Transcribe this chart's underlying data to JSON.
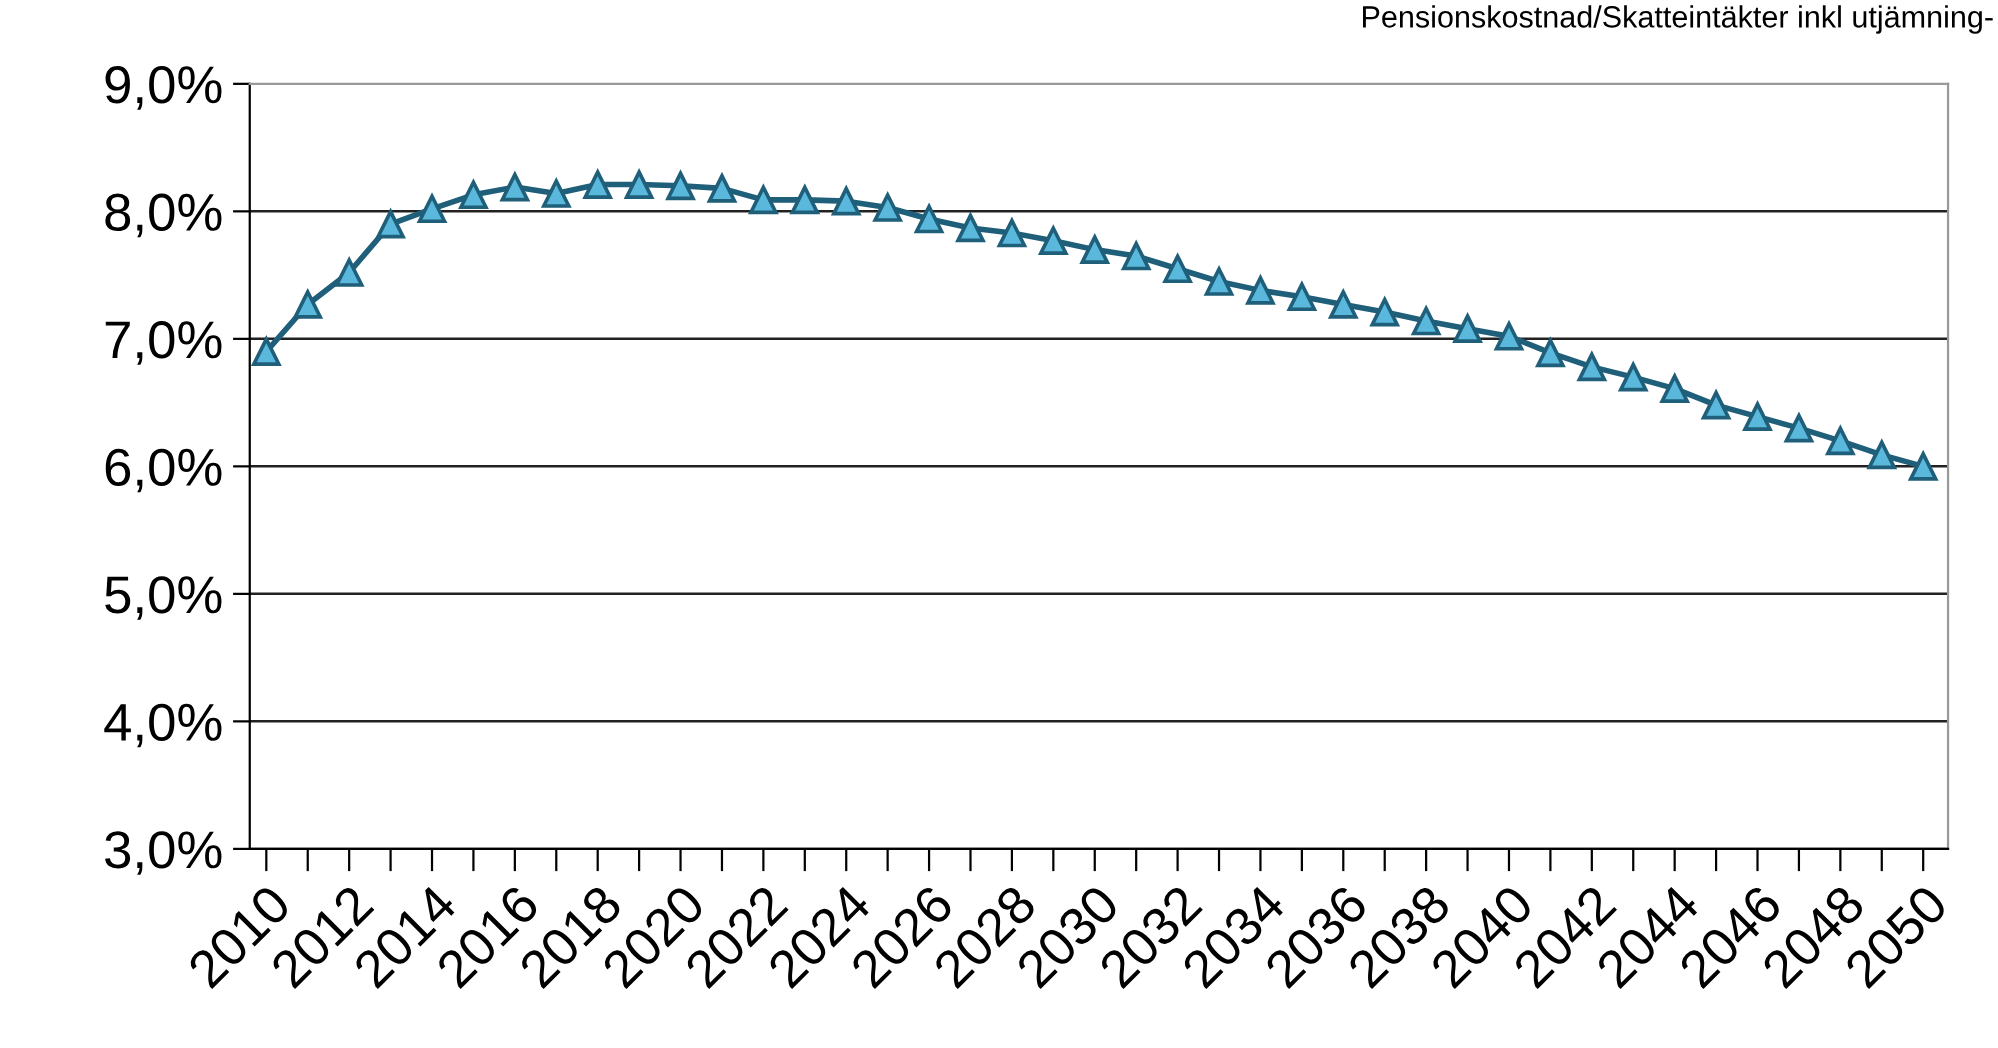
{
  "chart_data": {
    "type": "line",
    "title": "Pensionskostnad/Skatteintäkter inkl utjämning-",
    "categories": [
      "2010",
      null,
      "2012",
      null,
      "2014",
      null,
      "2016",
      null,
      "2018",
      null,
      "2020",
      null,
      "2022",
      null,
      "2024",
      null,
      "2026",
      null,
      "2028",
      null,
      "2030",
      null,
      "2032",
      null,
      "2034",
      null,
      "2036",
      null,
      "2038",
      null,
      "2040",
      null,
      "2042",
      null,
      "2044",
      null,
      "2046",
      null,
      "2048",
      null,
      "2050"
    ],
    "series": [
      {
        "color": "#1f5f7a",
        "values": [
          6.9,
          7.27,
          7.52,
          7.9,
          8.02,
          8.13,
          8.19,
          8.14,
          8.21,
          8.21,
          8.2,
          8.18,
          8.09,
          8.09,
          8.08,
          8.03,
          7.94,
          7.87,
          7.83,
          7.77,
          7.7,
          7.65,
          7.55,
          7.45,
          7.38,
          7.33,
          7.27,
          7.21,
          7.14,
          7.08,
          7.02,
          6.89,
          6.78,
          6.7,
          6.61,
          6.48,
          6.39,
          6.3,
          6.2,
          6.09,
          6.0
        ]
      }
    ],
    "ylim": [
      3,
      9
    ],
    "yticks": [
      {
        "value": 3,
        "label": "3,0%"
      },
      {
        "value": 4,
        "label": "4,0%"
      },
      {
        "value": 5,
        "label": "5,0%"
      },
      {
        "value": 6,
        "label": "6,0%"
      },
      {
        "value": 7,
        "label": "7,0%"
      },
      {
        "value": 8,
        "label": "8,0%"
      },
      {
        "value": 9,
        "label": "9,0%"
      }
    ],
    "grid": "y",
    "marker": "triangle",
    "line_style": "solid"
  }
}
